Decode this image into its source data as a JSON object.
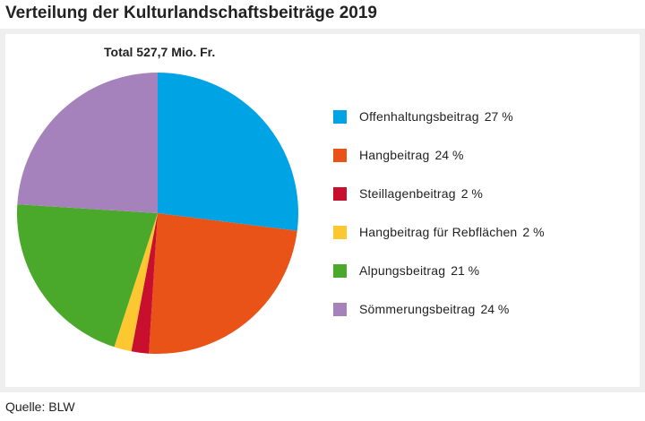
{
  "title": "Verteilung der Kulturlandschaftsbeiträge 2019",
  "source": "Quelle: BLW",
  "chart_data": {
    "type": "pie",
    "subtitle": "Total 527,7 Mio. Fr.",
    "legend_position": "right",
    "slices": [
      {
        "label": "Offenhaltungsbeitrag",
        "value": 27,
        "value_label": "27 %",
        "color": "#00a3e4"
      },
      {
        "label": "Hangbeitrag",
        "value": 24,
        "value_label": "24 %",
        "color": "#ea5317"
      },
      {
        "label": "Steillagenbeitrag",
        "value": 2,
        "value_label": "2 %",
        "color": "#c8102e"
      },
      {
        "label": "Hangbeitrag für Rebflächen",
        "value": 2,
        "value_label": "2 %",
        "color": "#fcc730"
      },
      {
        "label": "Alpungsbeitrag",
        "value": 21,
        "value_label": "21 %",
        "color": "#4aa82a"
      },
      {
        "label": "Sömmerungsbeitrag",
        "value": 24,
        "value_label": "24 %",
        "color": "#a682bd"
      }
    ]
  }
}
